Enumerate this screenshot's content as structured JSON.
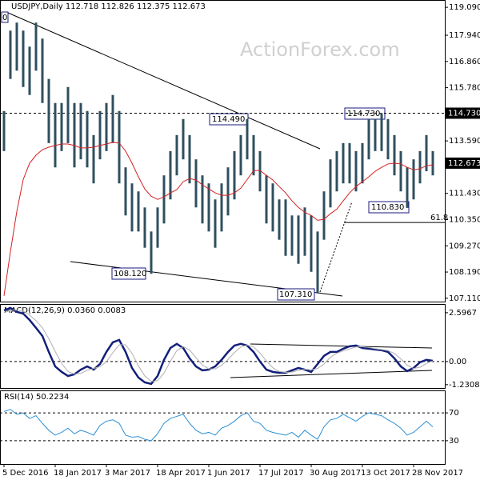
{
  "chart_data": [
    {
      "type": "ohlc",
      "title": "USDJPY,Daily  112.718 112.826 112.375 112.673",
      "watermark": "ActionForex.com",
      "color": "#2f4f5f",
      "high": [
        114.82,
        118.13,
        118.46,
        118.13,
        117.47,
        118.46,
        117.8,
        116.14,
        115.15,
        115.15,
        115.81,
        115.15,
        115.15,
        114.82,
        113.83,
        114.82,
        115.15,
        115.48,
        114.82,
        112.5,
        111.84,
        111.51,
        110.85,
        109.86,
        110.85,
        112.17,
        113.17,
        113.83,
        114.49,
        113.83,
        112.83,
        112.17,
        111.84,
        111.18,
        111.84,
        112.5,
        113.17,
        113.83,
        114.49,
        113.83,
        113.17,
        112.17,
        111.84,
        111.18,
        111.18,
        110.52,
        110.52,
        110.85,
        110.52,
        109.86,
        111.51,
        112.83,
        113.17,
        113.5,
        113.5,
        113.17,
        113.5,
        114.49,
        114.49,
        114.73,
        114.49,
        113.83,
        113.17,
        112.5,
        112.83,
        113.17,
        113.83,
        113.17
      ],
      "low": [
        113.17,
        116.14,
        116.48,
        115.81,
        115.48,
        116.48,
        115.15,
        113.5,
        112.5,
        113.17,
        113.5,
        112.5,
        112.83,
        112.5,
        111.84,
        112.83,
        113.17,
        113.5,
        111.84,
        110.52,
        109.86,
        109.86,
        109.19,
        108.12,
        109.19,
        110.19,
        111.18,
        112.17,
        112.83,
        111.84,
        110.85,
        110.19,
        109.86,
        109.19,
        109.86,
        110.52,
        111.18,
        112.17,
        112.83,
        112.17,
        111.51,
        110.19,
        109.86,
        109.52,
        108.86,
        108.86,
        108.53,
        108.86,
        108.2,
        107.31,
        109.52,
        110.85,
        111.51,
        111.84,
        111.84,
        111.51,
        111.84,
        112.83,
        113.17,
        113.17,
        112.83,
        112.17,
        111.51,
        110.83,
        111.18,
        111.84,
        112.34,
        112.17
      ],
      "ma": {
        "color": "#d42020",
        "values": [
          107.21,
          109.03,
          110.68,
          112.0,
          112.67,
          113.0,
          113.23,
          113.33,
          113.4,
          113.46,
          113.46,
          113.4,
          113.3,
          113.3,
          113.33,
          113.4,
          113.46,
          113.53,
          113.5,
          113.17,
          112.67,
          112.11,
          111.61,
          111.31,
          111.18,
          111.28,
          111.45,
          111.58,
          111.91,
          112.04,
          111.98,
          111.78,
          111.61,
          111.45,
          111.35,
          111.35,
          111.45,
          111.64,
          112.0,
          112.37,
          112.37,
          112.17,
          111.98,
          111.71,
          111.45,
          111.12,
          110.85,
          110.65,
          110.52,
          110.32,
          110.36,
          110.59,
          110.78,
          111.12,
          111.45,
          111.71,
          111.91,
          112.11,
          112.34,
          112.5,
          112.64,
          112.67,
          112.64,
          112.5,
          112.4,
          112.44,
          112.57,
          112.6
        ]
      },
      "ylim": [
        106.94,
        119.39
      ],
      "yticks": [
        {
          "value": 119.09,
          "label": "119.090"
        },
        {
          "value": 117.94,
          "label": "117.940"
        },
        {
          "value": 116.86,
          "label": "116.860"
        },
        {
          "value": 115.78,
          "label": "115.780"
        },
        {
          "value": 113.59,
          "label": "113.590"
        },
        {
          "value": 111.43,
          "label": "111.430"
        },
        {
          "value": 110.35,
          "label": "110.350"
        },
        {
          "value": 109.27,
          "label": "109.270"
        },
        {
          "value": 108.19,
          "label": "108.190"
        },
        {
          "value": 107.11,
          "label": "107.110"
        }
      ],
      "level_lines": [
        114.73
      ],
      "markers": [
        {
          "value": 114.73,
          "label": "114.730"
        },
        {
          "value": 112.673,
          "label": "112.673"
        }
      ],
      "fib": {
        "value": 110.23,
        "label": "61.8"
      },
      "annotations": [
        "0",
        "114.490",
        "114.730",
        "110.830",
        "108.120",
        "107.310"
      ]
    },
    {
      "type": "line",
      "title": "MACD(12,26,9) 0.0360 0.0083",
      "series": [
        {
          "color": "#13207a",
          "values": [
            2.72,
            2.85,
            2.64,
            2.55,
            2.21,
            1.79,
            1.36,
            0.51,
            -0.26,
            -0.55,
            -0.77,
            -0.68,
            -0.43,
            -0.26,
            -0.43,
            -0.13,
            0.51,
            1.02,
            1.15,
            0.51,
            -0.34,
            -0.85,
            -1.11,
            -1.19,
            -0.77,
            0.09,
            0.72,
            0.94,
            0.72,
            0.17,
            -0.26,
            -0.47,
            -0.43,
            -0.26,
            0.09,
            0.51,
            0.85,
            0.94,
            0.85,
            0.51,
            0,
            -0.43,
            -0.55,
            -0.6,
            -0.6,
            -0.47,
            -0.34,
            -0.43,
            -0.55,
            -0.13,
            0.3,
            0.51,
            0.51,
            0.68,
            0.81,
            0.85,
            0.72,
            0.68,
            0.64,
            0.6,
            0.51,
            0.17,
            -0.26,
            -0.51,
            -0.34,
            -0.04,
            0.09,
            0.04
          ]
        },
        {
          "color": "#b0b0b0",
          "values": [
            2.6,
            2.72,
            2.74,
            2.68,
            2.47,
            2.18,
            1.79,
            1.22,
            0.54,
            -0.1,
            -0.53,
            -0.67,
            -0.63,
            -0.46,
            -0.37,
            -0.27,
            -0.02,
            0.47,
            0.89,
            0.89,
            0.44,
            -0.23,
            -0.77,
            -1.05,
            -1.02,
            -0.62,
            0.01,
            0.58,
            0.79,
            0.61,
            0.21,
            -0.19,
            -0.39,
            -0.39,
            -0.2,
            0.11,
            0.48,
            0.77,
            0.88,
            0.77,
            0.45,
            0.03,
            -0.33,
            -0.53,
            -0.58,
            -0.56,
            -0.47,
            -0.41,
            -0.44,
            -0.37,
            -0.13,
            0.23,
            0.44,
            0.57,
            0.67,
            0.78,
            0.79,
            0.75,
            0.68,
            0.64,
            0.58,
            0.43,
            0.14,
            -0.2,
            -0.37,
            -0.3,
            -0.1,
            0.03
          ]
        }
      ],
      "ylim": [
        -1.45,
        3.06
      ],
      "yticks": [
        2.5967,
        {
          "value": 0,
          "label": "0.00"
        },
        -1.2308
      ],
      "level_lines": [
        0
      ]
    },
    {
      "type": "line",
      "title": "RSI(14) 50.2234",
      "categories": [
        "5 Dec 2016",
        null,
        null,
        null,
        null,
        null,
        null,
        null,
        "18 Jan 2017",
        null,
        null,
        null,
        null,
        null,
        null,
        null,
        "3 Mar 2017",
        null,
        null,
        null,
        null,
        null,
        null,
        null,
        "18 Apr 2017",
        null,
        null,
        null,
        null,
        null,
        null,
        null,
        "1 Jun 2017",
        null,
        null,
        null,
        null,
        null,
        null,
        null,
        "17 Jul 2017",
        null,
        null,
        null,
        null,
        null,
        null,
        null,
        "30 Aug 2017",
        null,
        null,
        null,
        null,
        null,
        null,
        null,
        "13 Oct 2017",
        null,
        null,
        null,
        null,
        null,
        null,
        null,
        "28 Nov 2017",
        null,
        null,
        null
      ],
      "series": [
        {
          "color": "#2b8fd6",
          "values": [
            72,
            75,
            68,
            70,
            62,
            66,
            55,
            45,
            38,
            42,
            48,
            40,
            45,
            42,
            38,
            52,
            58,
            60,
            55,
            38,
            35,
            36,
            32,
            30,
            40,
            55,
            62,
            65,
            68,
            55,
            45,
            40,
            42,
            38,
            48,
            52,
            58,
            66,
            70,
            58,
            55,
            45,
            42,
            40,
            38,
            42,
            35,
            45,
            38,
            32,
            50,
            60,
            62,
            68,
            63,
            58,
            65,
            70,
            68,
            66,
            60,
            55,
            48,
            38,
            42,
            50,
            58,
            50
          ]
        }
      ],
      "ylim": [
        0,
        100
      ],
      "yticks": [
        70,
        30
      ],
      "level_lines": [
        70,
        30
      ]
    }
  ]
}
